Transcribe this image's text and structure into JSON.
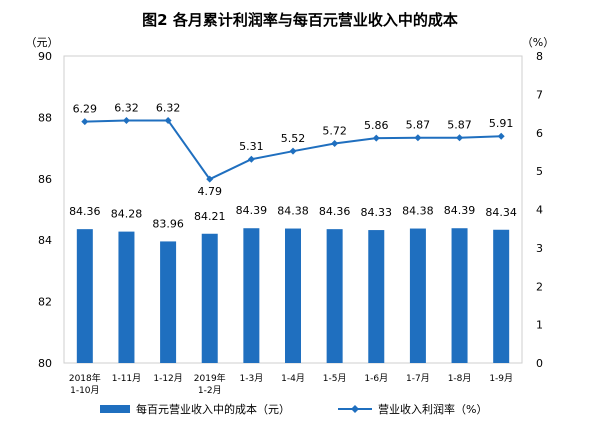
{
  "chart_data": {
    "type": "bar",
    "title": "图2 各月累计利润率与每百元营业收入中的成本",
    "left_unit": "（元）",
    "right_unit": "（%）",
    "categories": [
      [
        "2018年",
        "1-10月"
      ],
      [
        "1-11月"
      ],
      [
        "1-12月"
      ],
      [
        "2019年",
        "1-2月"
      ],
      [
        "1-3月"
      ],
      [
        "1-4月"
      ],
      [
        "1-5月"
      ],
      [
        "1-6月"
      ],
      [
        "1-7月"
      ],
      [
        "1-8月"
      ],
      [
        "1-9月"
      ]
    ],
    "left_axis": {
      "min": 80,
      "max": 90,
      "step": 2,
      "ticks": [
        "80",
        "82",
        "84",
        "86",
        "88",
        "90"
      ]
    },
    "right_axis": {
      "min": 0,
      "max": 8,
      "step": 1,
      "ticks": [
        "0",
        "1",
        "2",
        "3",
        "4",
        "5",
        "6",
        "7",
        "8"
      ]
    },
    "series": [
      {
        "name": "每百元营业收入中的成本（元）",
        "type": "bar",
        "axis": "left",
        "color": "#1f6fbf",
        "values": [
          84.36,
          84.28,
          83.96,
          84.21,
          84.39,
          84.38,
          84.36,
          84.33,
          84.38,
          84.39,
          84.34
        ],
        "labels": [
          "84.36",
          "84.28",
          "83.96",
          "84.21",
          "84.39",
          "84.38",
          "84.36",
          "84.33",
          "84.38",
          "84.39",
          "84.34"
        ]
      },
      {
        "name": "营业收入利润率（%）",
        "type": "line",
        "axis": "right",
        "color": "#1f6fbf",
        "values": [
          6.29,
          6.32,
          6.32,
          4.79,
          5.31,
          5.52,
          5.72,
          5.86,
          5.87,
          5.87,
          5.91
        ],
        "labels": [
          "6.29",
          "6.32",
          "6.32",
          "4.79",
          "5.31",
          "5.52",
          "5.72",
          "5.86",
          "5.87",
          "5.87",
          "5.91"
        ]
      }
    ],
    "grid": false,
    "legend": "bottom"
  }
}
